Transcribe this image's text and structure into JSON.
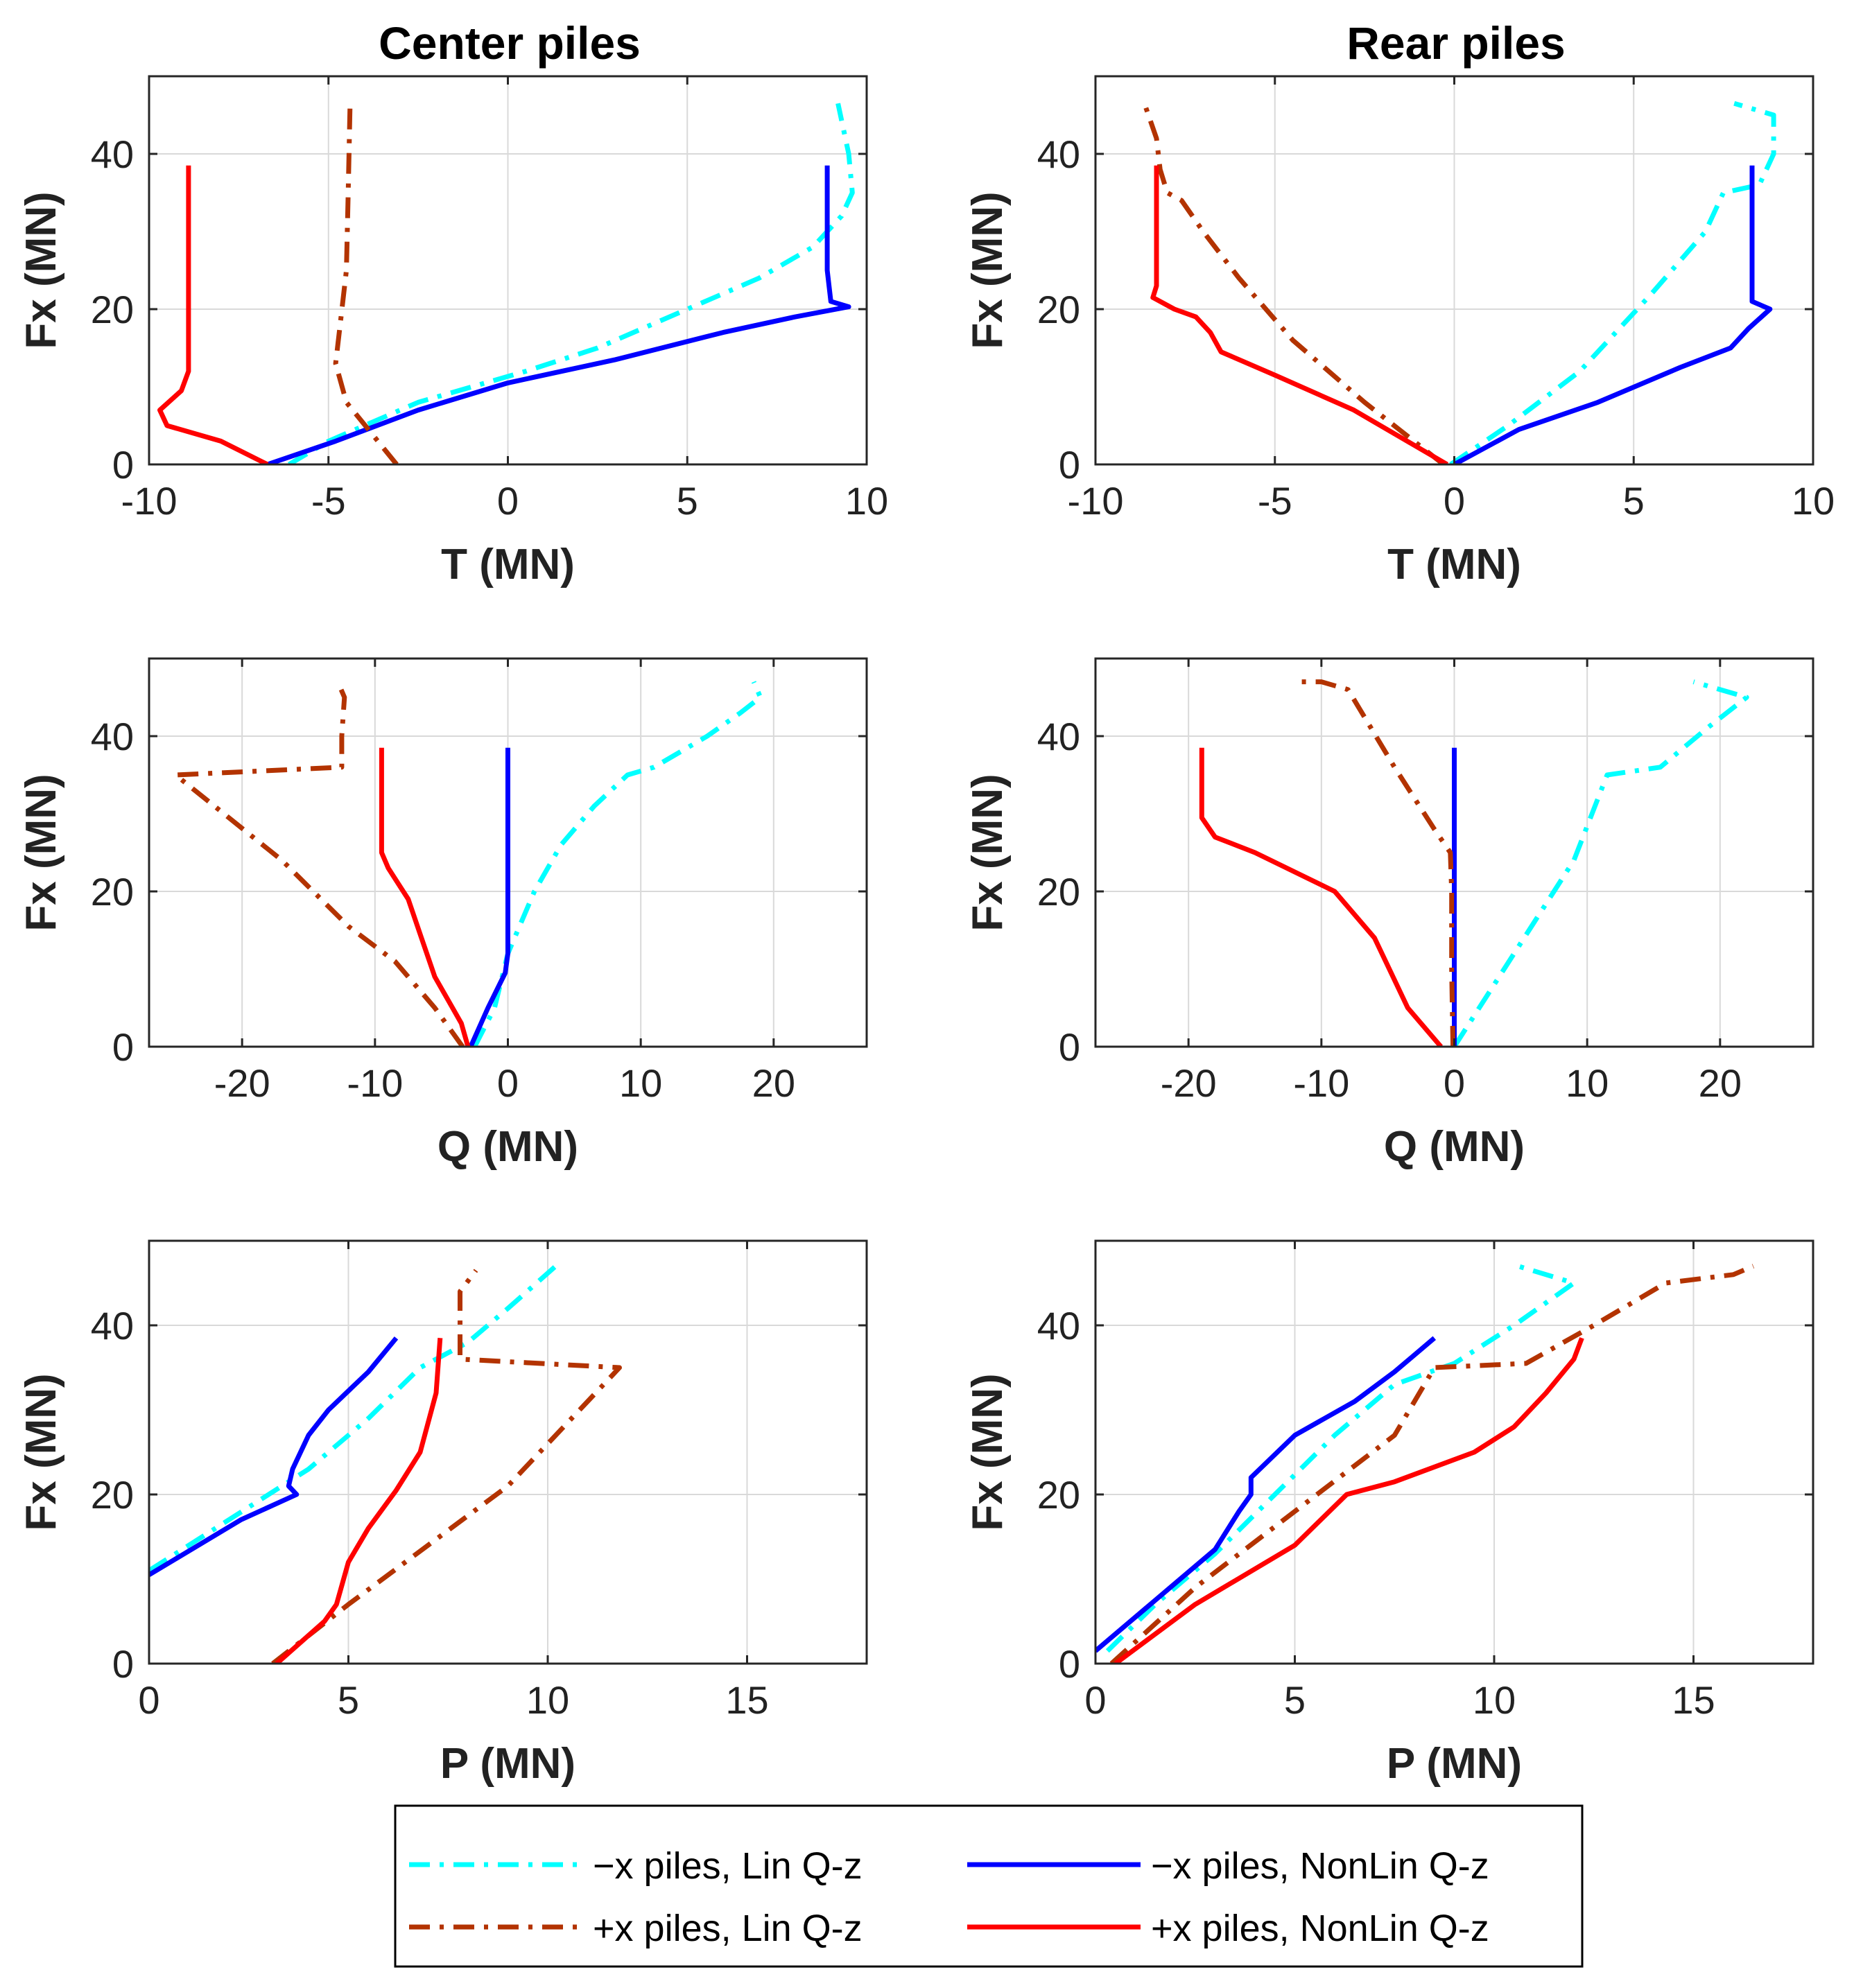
{
  "figure": {
    "column_titles": [
      "Center piles",
      "Rear piles"
    ]
  },
  "legend": {
    "entries": [
      {
        "label": "−x piles, Lin Q-z",
        "color": "#00FFFF",
        "dash": "dashdot"
      },
      {
        "label": "−x piles, NonLin Q-z",
        "color": "#0000FF",
        "dash": "solid"
      },
      {
        "label": "+x piles, Lin Q-z",
        "color": "#B33300",
        "dash": "dashdot"
      },
      {
        "label": "+x piles, NonLin Q-z",
        "color": "#FF0000",
        "dash": "solid"
      }
    ]
  },
  "chart_data": [
    {
      "type": "line",
      "title": "Center piles",
      "xlabel": "T (MN)",
      "ylabel": "Fx (MN)",
      "xlim": [
        -10,
        10
      ],
      "ylim": [
        0,
        50
      ],
      "xticks": [
        -10,
        -5,
        0,
        5,
        10
      ],
      "xtick_labels": [
        "-10",
        "-5",
        "0",
        "5",
        "10"
      ],
      "yticks": [
        0,
        20,
        40
      ],
      "ytick_labels": [
        "0",
        "20",
        "40"
      ],
      "grid": true,
      "series": [
        {
          "name": "−x piles, Lin Q-z",
          "x": [
            -6.1,
            -5.0,
            -3.5,
            -2.5,
            -1.0,
            0.5,
            2.5,
            5.0,
            7.0,
            8.5,
            9.3,
            9.6,
            9.5,
            9.2
          ],
          "y": [
            0,
            3,
            6,
            8,
            10,
            12,
            15,
            20,
            24,
            28,
            32,
            35,
            40,
            46.5
          ]
        },
        {
          "name": "−x piles, NonLin Q-z",
          "x": [
            -6.7,
            -4.8,
            -2.5,
            0,
            3,
            6,
            8,
            9.5,
            9.0,
            8.9,
            8.9
          ],
          "y": [
            0,
            3,
            7,
            10.5,
            13.5,
            17,
            19,
            20.3,
            21,
            25,
            38.5
          ]
        },
        {
          "name": "+x piles, Lin Q-z",
          "x": [
            -3.1,
            -3.8,
            -4.5,
            -4.8,
            -4.7,
            -4.5,
            -4.45,
            -4.4
          ],
          "y": [
            0,
            4,
            8,
            13,
            17,
            25,
            35,
            46
          ]
        },
        {
          "name": "+x piles, NonLin Q-z",
          "x": [
            -6.7,
            -8.0,
            -9.5,
            -9.7,
            -9.1,
            -8.9,
            -8.9,
            -8.9,
            -8.9
          ],
          "y": [
            0,
            3,
            5,
            7,
            9.5,
            12,
            20,
            30,
            38.5
          ]
        }
      ]
    },
    {
      "type": "line",
      "title": "Rear piles",
      "xlabel": "T (MN)",
      "ylabel": "Fx (MN)",
      "xlim": [
        -10,
        10
      ],
      "ylim": [
        0,
        50
      ],
      "xticks": [
        -10,
        -5,
        0,
        5,
        10
      ],
      "xtick_labels": [
        "-10",
        "-5",
        "0",
        "5",
        "10"
      ],
      "yticks": [
        0,
        20,
        40
      ],
      "ytick_labels": [
        "0",
        "20",
        "40"
      ],
      "grid": true,
      "series": [
        {
          "name": "−x piles, Lin Q-z",
          "x": [
            -0.1,
            1.5,
            3.5,
            5.5,
            7.0,
            7.5,
            8.5,
            8.9,
            8.9,
            7.8
          ],
          "y": [
            0,
            5,
            12,
            22,
            30,
            35,
            36,
            40,
            45,
            46.5
          ]
        },
        {
          "name": "−x piles, NonLin Q-z",
          "x": [
            0,
            1.8,
            4.0,
            6.3,
            7.7,
            8.2,
            8.8,
            8.3,
            8.3,
            8.3
          ],
          "y": [
            0,
            4.5,
            8,
            12.5,
            15,
            17.5,
            20,
            21,
            30,
            38.5
          ]
        },
        {
          "name": "+x piles, Lin Q-z",
          "x": [
            -0.3,
            -2.5,
            -4.5,
            -6.0,
            -7.0,
            -7.6,
            -8.0,
            -8.2,
            -8.3,
            -8.6
          ],
          "y": [
            0,
            8,
            16,
            24,
            30,
            34,
            35,
            38,
            42,
            46
          ]
        },
        {
          "name": "+x piles, NonLin Q-z",
          "x": [
            -0.2,
            -2.8,
            -5.0,
            -6.5,
            -6.8,
            -7.2,
            -7.8,
            -8.4,
            -8.3,
            -8.3,
            -8.3
          ],
          "y": [
            0,
            7,
            11.5,
            14.5,
            17,
            19,
            20,
            21.5,
            23,
            30,
            38.5
          ]
        }
      ]
    },
    {
      "type": "line",
      "title": "",
      "xlabel": "Q (MN)",
      "ylabel": "Fx (MN)",
      "xlim": [
        -27,
        27
      ],
      "ylim": [
        0,
        50
      ],
      "xticks": [
        -20,
        -10,
        0,
        10,
        20
      ],
      "xtick_labels": [
        "-20",
        "-10",
        "0",
        "10",
        "20"
      ],
      "yticks": [
        0,
        20,
        40
      ],
      "ytick_labels": [
        "0",
        "20",
        "40"
      ],
      "grid": true,
      "series": [
        {
          "name": "−x piles, Lin Q-z",
          "x": [
            -2.5,
            -1.0,
            0,
            2.0,
            4.0,
            6.5,
            9.0,
            11.0,
            15.0,
            17.5,
            19.0,
            18.5
          ],
          "y": [
            0,
            5,
            12,
            20,
            26,
            31,
            35,
            36,
            40,
            43,
            45,
            47
          ]
        },
        {
          "name": "−x piles, NonLin Q-z",
          "x": [
            -2.8,
            -1.5,
            -0.2,
            0,
            0,
            0
          ],
          "y": [
            0,
            5,
            9.5,
            12,
            25,
            38.5
          ]
        },
        {
          "name": "+x piles, Lin Q-z",
          "x": [
            -3.4,
            -5.5,
            -8.5,
            -12.0,
            -17.0,
            -25.0,
            -12.5,
            -12.5,
            -12.3,
            -12.8
          ],
          "y": [
            0,
            5,
            11,
            15.5,
            24,
            35,
            36,
            40,
            45,
            47
          ]
        },
        {
          "name": "+x piles, NonLin Q-z",
          "x": [
            -3.0,
            -3.5,
            -4.5,
            -5.5,
            -6.5,
            -7.5,
            -9.0,
            -9.5,
            -9.5,
            -9.5
          ],
          "y": [
            0,
            3,
            6,
            9,
            14,
            19,
            23,
            25,
            30,
            38.5
          ]
        }
      ]
    },
    {
      "type": "line",
      "title": "",
      "xlabel": "Q (MN)",
      "ylabel": "Fx (MN)",
      "xlim": [
        -27,
        27
      ],
      "ylim": [
        0,
        50
      ],
      "xticks": [
        -20,
        -10,
        0,
        10,
        20
      ],
      "xtick_labels": [
        "-20",
        "-10",
        "0",
        "10",
        "20"
      ],
      "yticks": [
        0,
        20,
        40
      ],
      "ytick_labels": [
        "0",
        "20",
        "40"
      ],
      "grid": true,
      "series": [
        {
          "name": "−x piles, Lin Q-z",
          "x": [
            0,
            3,
            6,
            9,
            11.5,
            15.5,
            19,
            22,
            18
          ],
          "y": [
            0,
            8,
            16,
            24,
            35,
            36,
            41,
            45,
            47
          ]
        },
        {
          "name": "−x piles, NonLin Q-z",
          "x": [
            0,
            0,
            0
          ],
          "y": [
            0,
            12,
            38.5
          ]
        },
        {
          "name": "+x piles, Lin Q-z",
          "x": [
            -0.1,
            -0.2,
            -0.2,
            -0.3,
            -1.5,
            -4.5,
            -8.0,
            -10.0,
            -12.0
          ],
          "y": [
            0,
            10,
            20,
            25,
            28,
            36,
            46,
            47,
            47
          ]
        },
        {
          "name": "+x piles, NonLin Q-z",
          "x": [
            -1.0,
            -3.5,
            -6.0,
            -7.5,
            -9.0,
            -12.0,
            -15.0,
            -18.0,
            -19.0,
            -19.0,
            -19.0
          ],
          "y": [
            0,
            5,
            14,
            17,
            20,
            22.5,
            25,
            27,
            29.5,
            32,
            38.5
          ]
        }
      ]
    },
    {
      "type": "line",
      "title": "",
      "xlabel": "P (MN)",
      "ylabel": "Fx (MN)",
      "xlim": [
        0,
        18
      ],
      "ylim": [
        0,
        50
      ],
      "xticks": [
        0,
        5,
        10,
        15
      ],
      "xtick_labels": [
        "0",
        "5",
        "10",
        "15"
      ],
      "yticks": [
        0,
        20,
        40
      ],
      "ytick_labels": [
        "0",
        "20",
        "40"
      ],
      "grid": true,
      "series": [
        {
          "name": "−x piles, Lin Q-z",
          "x": [
            0,
            2.0,
            4.0,
            5.5,
            6.8,
            8.0,
            9.0,
            10.2
          ],
          "y": [
            11,
            17,
            23,
            29,
            35,
            38,
            42,
            47
          ]
        },
        {
          "name": "−x piles, NonLin Q-z",
          "x": [
            0,
            2.3,
            3.7,
            3.5,
            3.6,
            4.0,
            4.5,
            5.5,
            6.2
          ],
          "y": [
            10.5,
            17,
            20,
            21,
            23,
            27,
            30,
            34.5,
            38.5
          ]
        },
        {
          "name": "+x piles, Lin Q-z",
          "x": [
            3.1,
            5.0,
            7.0,
            9.0,
            11.8,
            7.8,
            7.8,
            8.2
          ],
          "y": [
            0,
            7,
            14,
            21,
            35,
            36,
            44,
            46.5
          ]
        },
        {
          "name": "+x piles, NonLin Q-z",
          "x": [
            3.2,
            4.4,
            4.7,
            5.0,
            5.5,
            6.2,
            6.8,
            7.2,
            7.3
          ],
          "y": [
            0,
            5,
            7,
            12,
            16,
            20.5,
            25,
            32,
            38.5
          ]
        }
      ]
    },
    {
      "type": "line",
      "title": "",
      "xlabel": "P (MN)",
      "ylabel": "Fx (MN)",
      "xlim": [
        0,
        18
      ],
      "ylim": [
        0,
        50
      ],
      "xticks": [
        0,
        5,
        10,
        15
      ],
      "xtick_labels": [
        "0",
        "5",
        "10",
        "15"
      ],
      "yticks": [
        0,
        20,
        40
      ],
      "ytick_labels": [
        "0",
        "20",
        "40"
      ],
      "grid": true,
      "series": [
        {
          "name": "−x piles, Lin Q-z",
          "x": [
            0.3,
            1.5,
            3.0,
            4.5,
            6.0,
            7.5,
            9.0,
            10.5,
            12.0,
            10.6
          ],
          "y": [
            1.5,
            7,
            13,
            20,
            27,
            33,
            35.5,
            40,
            45,
            47
          ]
        },
        {
          "name": "−x piles, NonLin Q-z",
          "x": [
            0,
            1.5,
            3.0,
            3.6,
            3.9,
            3.9,
            5.0,
            6.5,
            7.5,
            8.5
          ],
          "y": [
            1.5,
            7.5,
            13.5,
            18,
            20,
            22,
            27,
            31,
            34.5,
            38.5
          ]
        },
        {
          "name": "+x piles, Lin Q-z",
          "x": [
            0.4,
            2.5,
            5.0,
            7.5,
            8.5,
            10.8,
            12.5,
            14.3,
            16.0,
            16.5
          ],
          "y": [
            0,
            9,
            18,
            27,
            35,
            35.5,
            40,
            45,
            46,
            47
          ]
        },
        {
          "name": "+x piles, NonLin Q-z",
          "x": [
            0.5,
            2.5,
            5.0,
            6.3,
            7.5,
            9.5,
            10.5,
            11.3,
            12.0,
            12.2
          ],
          "y": [
            0,
            7,
            14,
            20,
            21.5,
            25,
            28,
            32,
            36,
            38.5
          ]
        }
      ]
    }
  ]
}
